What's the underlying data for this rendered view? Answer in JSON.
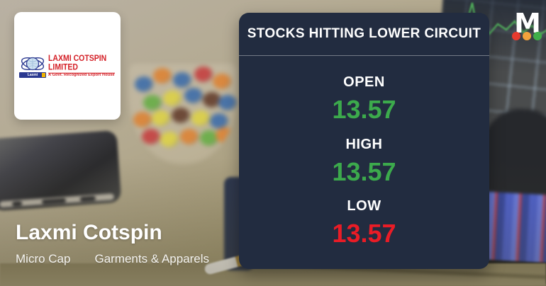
{
  "panel": {
    "title": "STOCKS HITTING LOWER CIRCUIT",
    "bg_color": "#222c40",
    "divider_color": "#8f949e",
    "rows": [
      {
        "label": "OPEN",
        "value": "13.57",
        "value_color": "#3caa4c"
      },
      {
        "label": "HIGH",
        "value": "13.57",
        "value_color": "#3caa4c"
      },
      {
        "label": "LOW",
        "value": "13.57",
        "value_color": "#ea1c26"
      }
    ]
  },
  "company": {
    "name": "Laxmi Cotspin",
    "cap_category": "Micro Cap",
    "sector": "Garments & Apparels",
    "logo": {
      "name_line": "LAXMI COTSPIN LIMITED",
      "tagline": "A Govt. Recognized Export House",
      "ribbon": "Laxmi",
      "text_color": "#d42027"
    }
  },
  "brand": {
    "monogram": "M",
    "dot_colors": [
      "#e63a2e",
      "#f2a33c",
      "#3fae49"
    ]
  }
}
